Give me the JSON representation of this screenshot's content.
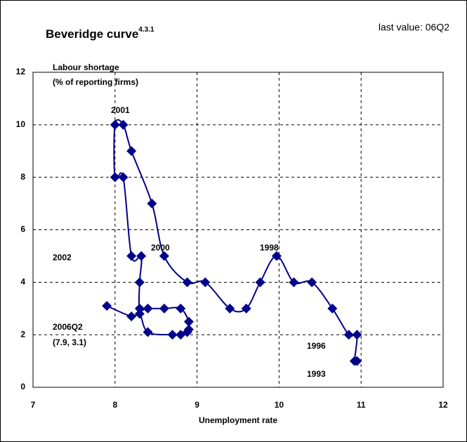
{
  "chart_data": {
    "type": "scatter",
    "title": "Beveridge curve",
    "title_superscript": "4.3.1",
    "subtitle": "last value: 06Q2",
    "y_label": [
      "Labour shortage",
      "(% of reporting firms)"
    ],
    "x_label": "Unemployment rate",
    "color": "#00008b",
    "connected": true,
    "grid": true,
    "x": [
      10.95,
      10.92,
      10.95,
      10.85,
      10.65,
      10.4,
      10.18,
      9.97,
      9.77,
      9.6,
      9.4,
      9.1,
      8.88,
      8.6,
      8.45,
      8.2,
      8.1,
      8.0,
      8.0,
      8.1,
      8.2,
      8.32,
      8.3,
      8.3,
      8.4,
      8.6,
      8.8,
      8.9,
      8.9,
      8.88,
      8.8,
      8.7,
      8.4,
      8.3,
      8.2,
      7.9
    ],
    "values": [
      1,
      1,
      2,
      2,
      3,
      4,
      4,
      5,
      4,
      3,
      3,
      4,
      4,
      5,
      7,
      9,
      10,
      10,
      8,
      8,
      5,
      5,
      4,
      3,
      3,
      3,
      3,
      2.5,
      2.2,
      2.1,
      2,
      2,
      2.1,
      2.8,
      2.7,
      3.1
    ],
    "xlim": [
      7,
      12
    ],
    "xticks": [
      7,
      8,
      9,
      10,
      11,
      12
    ],
    "ylim": [
      0,
      12
    ],
    "yticks": [
      0,
      2,
      4,
      6,
      8,
      10,
      12
    ],
    "annotations": [
      "2001",
      "2002",
      "2000",
      "1998",
      "1996",
      "1993",
      "2006Q2",
      "(7.9, 3.1)"
    ]
  }
}
